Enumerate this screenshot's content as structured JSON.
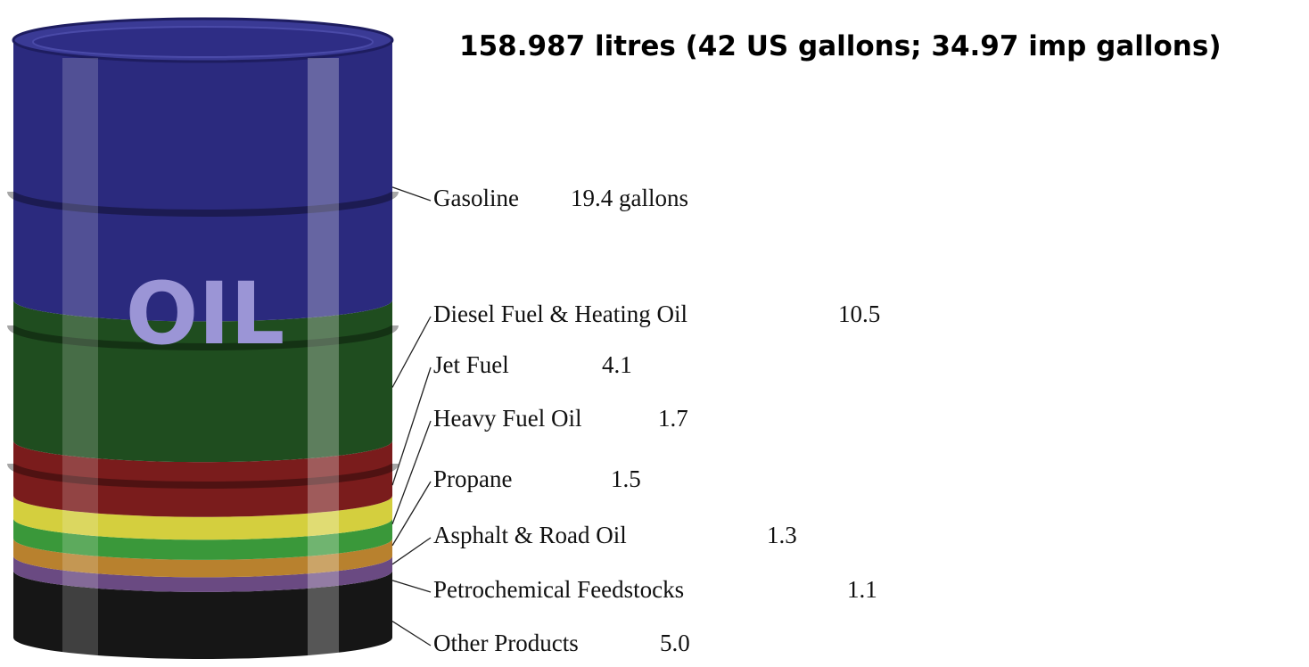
{
  "chart_data": {
    "type": "barrel",
    "title": "158.987 litres (42 US gallons; 34.97 imp gallons)",
    "barrel_label": "OIL",
    "categories": [
      "Gasoline",
      "Diesel Fuel & Heating Oil",
      "Jet Fuel",
      "Heavy Fuel Oil",
      "Propane",
      "Asphalt & Road Oil",
      "Petrochemical Feedstocks",
      "Other Products"
    ],
    "values": [
      19.4,
      10.5,
      4.1,
      1.7,
      1.5,
      1.3,
      1.1,
      5.0
    ],
    "value_labels": [
      "19.4 gallons",
      "10.5",
      "4.1",
      "1.7",
      "1.5",
      "1.3",
      "1.1",
      "5.0"
    ],
    "colors": [
      "#2b2a7e",
      "#1f4d1f",
      "#7a1c1c",
      "#d4cf3e",
      "#3a983a",
      "#b8812e",
      "#6a4a82",
      "#161616"
    ]
  }
}
